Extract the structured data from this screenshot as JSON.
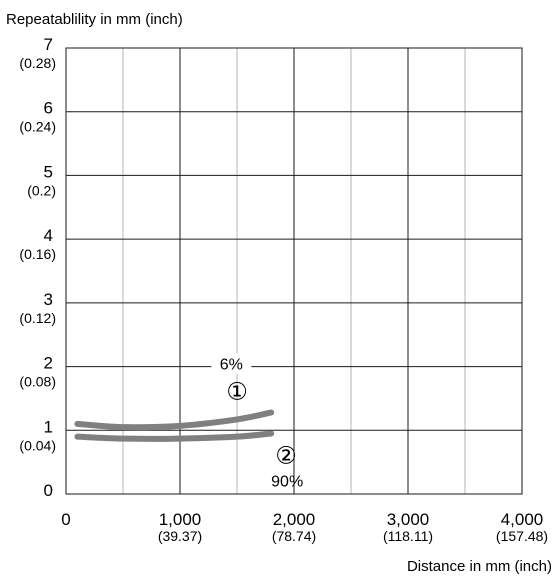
{
  "chart_data": {
    "type": "line",
    "ylabel": "Repeatablility in mm (inch)",
    "xlabel": "Distance in mm (inch)",
    "xlim": [
      0,
      4000
    ],
    "ylim": [
      0,
      7
    ],
    "grid": true,
    "x_ticks": [
      {
        "value": 0,
        "label": "0",
        "sub": ""
      },
      {
        "value": 1000,
        "label": "1,000",
        "sub": "(39.37)"
      },
      {
        "value": 2000,
        "label": "2,000",
        "sub": "(78.74)"
      },
      {
        "value": 3000,
        "label": "3,000",
        "sub": "(118.11)"
      },
      {
        "value": 4000,
        "label": "4,000",
        "sub": "(157.48)"
      }
    ],
    "y_ticks": [
      {
        "value": 0,
        "label": "0",
        "sub": ""
      },
      {
        "value": 1,
        "label": "1",
        "sub": "(0.04)"
      },
      {
        "value": 2,
        "label": "2",
        "sub": "(0.08)"
      },
      {
        "value": 3,
        "label": "3",
        "sub": "(0.12)"
      },
      {
        "value": 4,
        "label": "4",
        "sub": "(0.16)"
      },
      {
        "value": 5,
        "label": "5",
        "sub": "(0.2)"
      },
      {
        "value": 6,
        "label": "6",
        "sub": "(0.24)"
      },
      {
        "value": 7,
        "label": "7",
        "sub": "(0.28)"
      }
    ],
    "series": [
      {
        "marker": "①",
        "annotation": "6%",
        "color": "#808080",
        "x": [
          100,
          500,
          1000,
          1500,
          1800
        ],
        "y": [
          1.1,
          1.05,
          1.07,
          1.17,
          1.28
        ]
      },
      {
        "marker": "②",
        "annotation": "90%",
        "color": "#808080",
        "x": [
          100,
          500,
          1000,
          1500,
          1800
        ],
        "y": [
          0.9,
          0.87,
          0.87,
          0.9,
          0.95
        ]
      }
    ]
  }
}
